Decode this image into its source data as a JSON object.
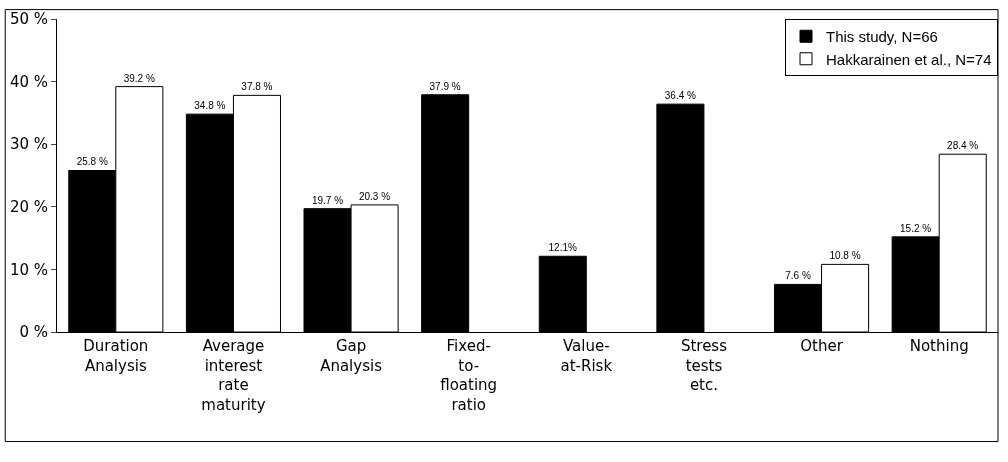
{
  "chart_data": {
    "type": "bar",
    "categories": [
      "Duration\nAnalysis",
      "Average\ninterest\nrate\nmaturity",
      "Gap\nAnalysis",
      "Fixed-\nto-\nfloating\nratio",
      "Value-\nat-Risk",
      "Stress\ntests\netc.",
      "Other",
      "Nothing"
    ],
    "series": [
      {
        "name": "This study, N=66",
        "color": "#000000",
        "values": [
          25.8,
          34.8,
          19.7,
          37.9,
          12.1,
          36.4,
          7.6,
          15.2
        ],
        "value_labels": [
          "25.8 %",
          "34.8 %",
          "19.7 %",
          "37.9 %",
          "12.1%",
          "36.4 %",
          "7.6 %",
          "15.2 %"
        ]
      },
      {
        "name": "Hakkarainen et al., N=74",
        "color": "#ffffff",
        "values": [
          39.2,
          37.8,
          20.3,
          null,
          null,
          null,
          10.8,
          28.4
        ],
        "value_labels": [
          "39.2 %",
          "37.8 %",
          "20.3 %",
          null,
          null,
          null,
          "10.8 %",
          "28.4 %"
        ]
      }
    ],
    "ylim": [
      0,
      50
    ],
    "yticks": [
      {
        "value": 0,
        "label": "0 %"
      },
      {
        "value": 10,
        "label": "10 %"
      },
      {
        "value": 20,
        "label": "20 %"
      },
      {
        "value": 30,
        "label": "30 %"
      },
      {
        "value": 40,
        "label": "40 %"
      },
      {
        "value": 50,
        "label": "50 %"
      }
    ],
    "grid": false,
    "legend": "top right"
  }
}
